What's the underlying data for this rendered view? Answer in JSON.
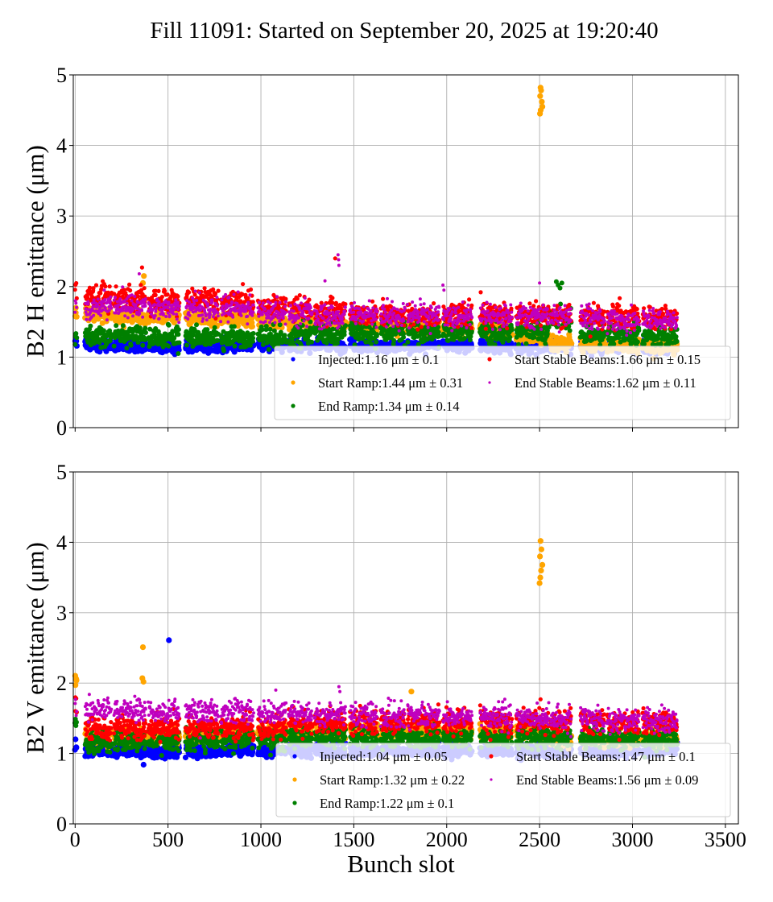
{
  "title": "Fill 11091: Started on September 20, 2025 at 19:20:40",
  "chart_data": [
    {
      "type": "scatter",
      "panel": "top",
      "title": "",
      "xlabel": "",
      "ylabel": "B2 H emittance (μm)",
      "xlim": [
        -10,
        3570
      ],
      "ylim": [
        0,
        5
      ],
      "xticks": [
        0,
        500,
        1000,
        1500,
        2000,
        2500,
        3000,
        3500
      ],
      "xtick_labels_visible": false,
      "yticks": [
        0,
        1,
        2,
        3,
        4,
        5
      ],
      "grid": true,
      "legend_placement": "lower-right",
      "legend_columns": 2,
      "trains": [
        [
          0,
          8
        ],
        [
          55,
          195
        ],
        [
          210,
          380
        ],
        [
          395,
          560
        ],
        [
          595,
          770
        ],
        [
          785,
          960
        ],
        [
          985,
          1135
        ],
        [
          1150,
          1275
        ],
        [
          1290,
          1455
        ],
        [
          1480,
          1625
        ],
        [
          1645,
          1775
        ],
        [
          1790,
          1960
        ],
        [
          1980,
          2135
        ],
        [
          2180,
          2350
        ],
        [
          2375,
          2550
        ],
        [
          2560,
          2670
        ],
        [
          2720,
          2850
        ],
        [
          2865,
          3035
        ],
        [
          3055,
          3240
        ]
      ],
      "series": [
        {
          "name": "Injected",
          "label": "Injected:1.16 μm ± 0.1",
          "mean": 1.16,
          "std": 0.1,
          "color": "#0000ff",
          "train_means": [
            1.24,
            1.18,
            1.16,
            1.15,
            1.15,
            1.16,
            1.17,
            1.16,
            1.15,
            1.16,
            1.15,
            1.16,
            1.17,
            1.16,
            1.15,
            1.15,
            1.15,
            1.15,
            1.15
          ],
          "outliers": []
        },
        {
          "name": "Start Ramp",
          "label": "Start Ramp:1.44 μm ± 0.31",
          "mean": 1.44,
          "std": 0.31,
          "color": "#ffa500",
          "train_means": [
            1.58,
            1.6,
            1.58,
            1.56,
            1.55,
            1.54,
            1.52,
            1.5,
            1.48,
            1.46,
            1.45,
            1.43,
            1.42,
            1.4,
            1.3,
            1.2,
            1.18,
            1.15,
            1.15
          ],
          "outliers": [
            [
              2505,
              4.82
            ],
            [
              2508,
              4.78
            ],
            [
              2503,
              4.7
            ],
            [
              2512,
              4.62
            ],
            [
              2515,
              4.55
            ],
            [
              2506,
              4.5
            ],
            [
              2502,
              4.45
            ],
            [
              370,
              2.15
            ],
            [
              365,
              2.05
            ]
          ]
        },
        {
          "name": "End Ramp",
          "label": "End Ramp:1.34 μm ± 0.14",
          "mean": 1.34,
          "std": 0.14,
          "color": "#008000",
          "train_means": [
            1.35,
            1.3,
            1.3,
            1.28,
            1.28,
            1.28,
            1.29,
            1.3,
            1.32,
            1.35,
            1.36,
            1.35,
            1.36,
            1.36,
            1.36,
            1.55,
            1.33,
            1.32,
            1.3
          ],
          "outliers": [
            [
              2590,
              2.07
            ],
            [
              2600,
              2.02
            ],
            [
              2610,
              1.98
            ],
            [
              2620,
              2.05
            ],
            [
              555,
              1.05
            ]
          ]
        },
        {
          "name": "Start Stable Beams",
          "label": "Start Stable Beams:1.66 μm ± 0.15",
          "mean": 1.66,
          "std": 0.15,
          "color": "#ff0000",
          "train_means": [
            1.9,
            1.85,
            1.83,
            1.8,
            1.8,
            1.78,
            1.72,
            1.7,
            1.65,
            1.62,
            1.6,
            1.58,
            1.6,
            1.6,
            1.6,
            1.58,
            1.58,
            1.55,
            1.56
          ],
          "outliers": [
            [
              1400,
              2.4
            ],
            [
              360,
              2.27
            ]
          ]
        },
        {
          "name": "End Stable Beams",
          "label": "End Stable Beams:1.62 μm ± 0.11",
          "mean": 1.62,
          "std": 0.11,
          "color": "#bf00bf",
          "train_means": [
            1.78,
            1.72,
            1.72,
            1.7,
            1.7,
            1.68,
            1.64,
            1.62,
            1.58,
            1.6,
            1.58,
            1.58,
            1.58,
            1.58,
            1.56,
            1.58,
            1.56,
            1.52,
            1.52
          ],
          "outliers": [
            [
              1415,
              2.45
            ],
            [
              1418,
              2.38
            ],
            [
              1420,
              2.3
            ],
            [
              1345,
              2.08
            ],
            [
              1980,
              2.02
            ],
            [
              1985,
              1.95
            ],
            [
              2500,
              2.05
            ],
            [
              345,
              2.18
            ]
          ]
        }
      ]
    },
    {
      "type": "scatter",
      "panel": "bottom",
      "title": "",
      "xlabel": "Bunch slot",
      "ylabel": "B2 V emittance (μm)",
      "xlim": [
        -10,
        3570
      ],
      "ylim": [
        0,
        5
      ],
      "xticks": [
        0,
        500,
        1000,
        1500,
        2000,
        2500,
        3000,
        3500
      ],
      "xtick_labels": [
        "0",
        "500",
        "1000",
        "1500",
        "2000",
        "2500",
        "3000",
        "3500"
      ],
      "yticks": [
        0,
        1,
        2,
        3,
        4,
        5
      ],
      "grid": true,
      "legend_placement": "lower-right",
      "legend_columns": 2,
      "trains": [
        [
          0,
          8
        ],
        [
          55,
          195
        ],
        [
          210,
          380
        ],
        [
          395,
          560
        ],
        [
          595,
          770
        ],
        [
          785,
          960
        ],
        [
          985,
          1135
        ],
        [
          1150,
          1275
        ],
        [
          1290,
          1455
        ],
        [
          1480,
          1625
        ],
        [
          1645,
          1775
        ],
        [
          1790,
          1960
        ],
        [
          1980,
          2135
        ],
        [
          2180,
          2350
        ],
        [
          2375,
          2550
        ],
        [
          2560,
          2670
        ],
        [
          2720,
          2850
        ],
        [
          2865,
          3035
        ],
        [
          3055,
          3240
        ]
      ],
      "series": [
        {
          "name": "Injected",
          "label": "Injected:1.04 μm ± 0.05",
          "mean": 1.04,
          "std": 0.05,
          "color": "#0000ff",
          "train_means": [
            1.1,
            1.04,
            1.03,
            1.02,
            1.03,
            1.04,
            1.04,
            1.04,
            1.04,
            1.04,
            1.04,
            1.04,
            1.04,
            1.04,
            1.04,
            1.04,
            1.04,
            1.04,
            1.04
          ],
          "outliers": [
            [
              505,
              2.61
            ]
          ]
        },
        {
          "name": "Start Ramp",
          "label": "Start Ramp:1.32 μm ± 0.22",
          "mean": 1.32,
          "std": 0.22,
          "color": "#ffa500",
          "train_means": [
            1.98,
            1.25,
            1.25,
            1.26,
            1.27,
            1.28,
            1.3,
            1.3,
            1.32,
            1.32,
            1.33,
            1.32,
            1.32,
            1.3,
            1.3,
            1.2,
            1.2,
            1.2,
            1.2
          ],
          "outliers": [
            [
              2505,
              4.02
            ],
            [
              2510,
              3.9
            ],
            [
              2502,
              3.8
            ],
            [
              2515,
              3.68
            ],
            [
              2508,
              3.6
            ],
            [
              2504,
              3.5
            ],
            [
              2500,
              3.42
            ],
            [
              365,
              2.51
            ],
            [
              362,
              2.07
            ],
            [
              368,
              2.02
            ],
            [
              1810,
              1.88
            ]
          ]
        },
        {
          "name": "End Ramp",
          "label": "End Ramp:1.22 μm ± 0.1",
          "mean": 1.22,
          "std": 0.1,
          "color": "#008000",
          "train_means": [
            1.45,
            1.15,
            1.18,
            1.18,
            1.2,
            1.2,
            1.2,
            1.22,
            1.24,
            1.24,
            1.24,
            1.22,
            1.23,
            1.22,
            1.22,
            1.22,
            1.22,
            1.2,
            1.2
          ],
          "outliers": []
        },
        {
          "name": "Start Stable Beams",
          "label": "Start Stable Beams:1.47 μm ± 0.1",
          "mean": 1.47,
          "std": 0.1,
          "color": "#ff0000",
          "train_means": [
            1.7,
            1.35,
            1.38,
            1.36,
            1.38,
            1.38,
            1.38,
            1.42,
            1.46,
            1.46,
            1.45,
            1.45,
            1.45,
            1.44,
            1.45,
            1.44,
            1.44,
            1.42,
            1.45
          ],
          "outliers": [
            [
              2505,
              1.77
            ]
          ]
        },
        {
          "name": "End Stable Beams",
          "label": "End Stable Beams:1.56 μm ± 0.09",
          "mean": 1.56,
          "std": 0.09,
          "color": "#bf00bf",
          "train_means": [
            1.75,
            1.62,
            1.62,
            1.6,
            1.6,
            1.6,
            1.58,
            1.56,
            1.56,
            1.55,
            1.54,
            1.54,
            1.52,
            1.52,
            1.5,
            1.48,
            1.48,
            1.48,
            1.48
          ],
          "outliers": [
            [
              1420,
              1.95
            ],
            [
              1425,
              1.88
            ],
            [
              1080,
              1.9
            ]
          ]
        }
      ]
    }
  ]
}
